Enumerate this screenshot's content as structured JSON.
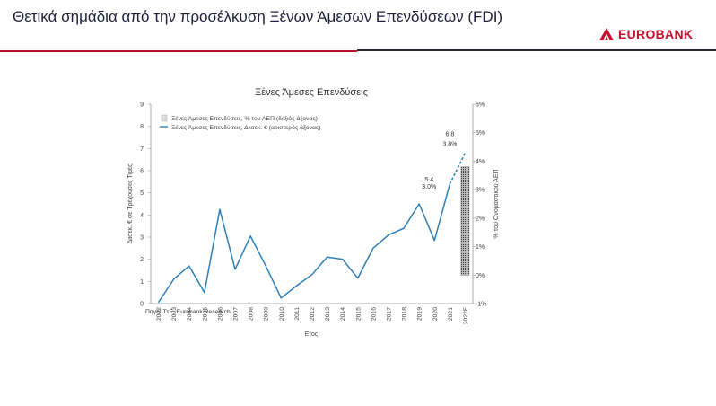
{
  "header": {
    "title": "Θετικά σημάδια από την προσέλκυση Ξένων Άμεσων Επενδύσεων (FDI)",
    "logo_text": "EUROBANK"
  },
  "colors": {
    "brand": "#c8102e",
    "series_line": "#2e7fb8",
    "bar_fill": "#3a3a3a"
  },
  "chart_data": {
    "type": "line",
    "title": "Ξένες Άμεσες Επενδύσεις",
    "xlabel": "Ετος",
    "ylabel": "Διισεκ. € σε Τρέχουσες Τιμές",
    "y2label": "% του Ονομαστικού ΑΕΠ",
    "ylim": [
      0,
      9
    ],
    "y2lim": [
      -1,
      6
    ],
    "yticks": [
      "0",
      "1",
      "2",
      "3",
      "4",
      "5",
      "6",
      "7",
      "8",
      "9"
    ],
    "y2ticks": [
      "-1%",
      "0%",
      "1%",
      "2%",
      "3%",
      "4%",
      "5%",
      "6%"
    ],
    "categories": [
      "2002",
      "2003",
      "2004",
      "2005",
      "2006",
      "2007",
      "2008",
      "2009",
      "2010",
      "2011",
      "2012",
      "2013",
      "2014",
      "2015",
      "2016",
      "2017",
      "2018",
      "2019",
      "2020",
      "2021",
      "2022F"
    ],
    "legend": {
      "placement": "top-left",
      "bar_entry": "Ξένες Άμεσες Επενδύσεις, % του ΑΕΠ (δεξιός άξονας)",
      "line_entry": "Ξένες Άμεσες Επενδύσεις, Διισεκ. € (αριστερός άξονας)"
    },
    "series": [
      {
        "name": "Ξένες Άμεσες Επενδύσεις, Διισεκ. € (αριστερός άξονας)",
        "axis": "left",
        "values": [
          0.05,
          1.1,
          1.7,
          0.5,
          4.25,
          1.55,
          3.05,
          1.7,
          0.25,
          0.8,
          1.3,
          2.1,
          2.0,
          1.15,
          2.5,
          3.1,
          3.4,
          4.5,
          2.85,
          5.4,
          6.8
        ],
        "forecast_from_index": 19
      },
      {
        "name": "Ξένες Άμεσες Επενδύσεις, % του ΑΕΠ (δεξιός άξονας)",
        "axis": "right",
        "type": "bar",
        "category": "2022F",
        "value": 3.8
      }
    ],
    "annotations": [
      {
        "label": "6.8",
        "category": "2021"
      },
      {
        "label": "3.8%",
        "category": "2021"
      },
      {
        "label": "5.4",
        "category": "2020"
      },
      {
        "label": "3.0%",
        "category": "2020"
      }
    ],
    "source": "Πηγή: ΤτΕ, Eurobank Research"
  }
}
